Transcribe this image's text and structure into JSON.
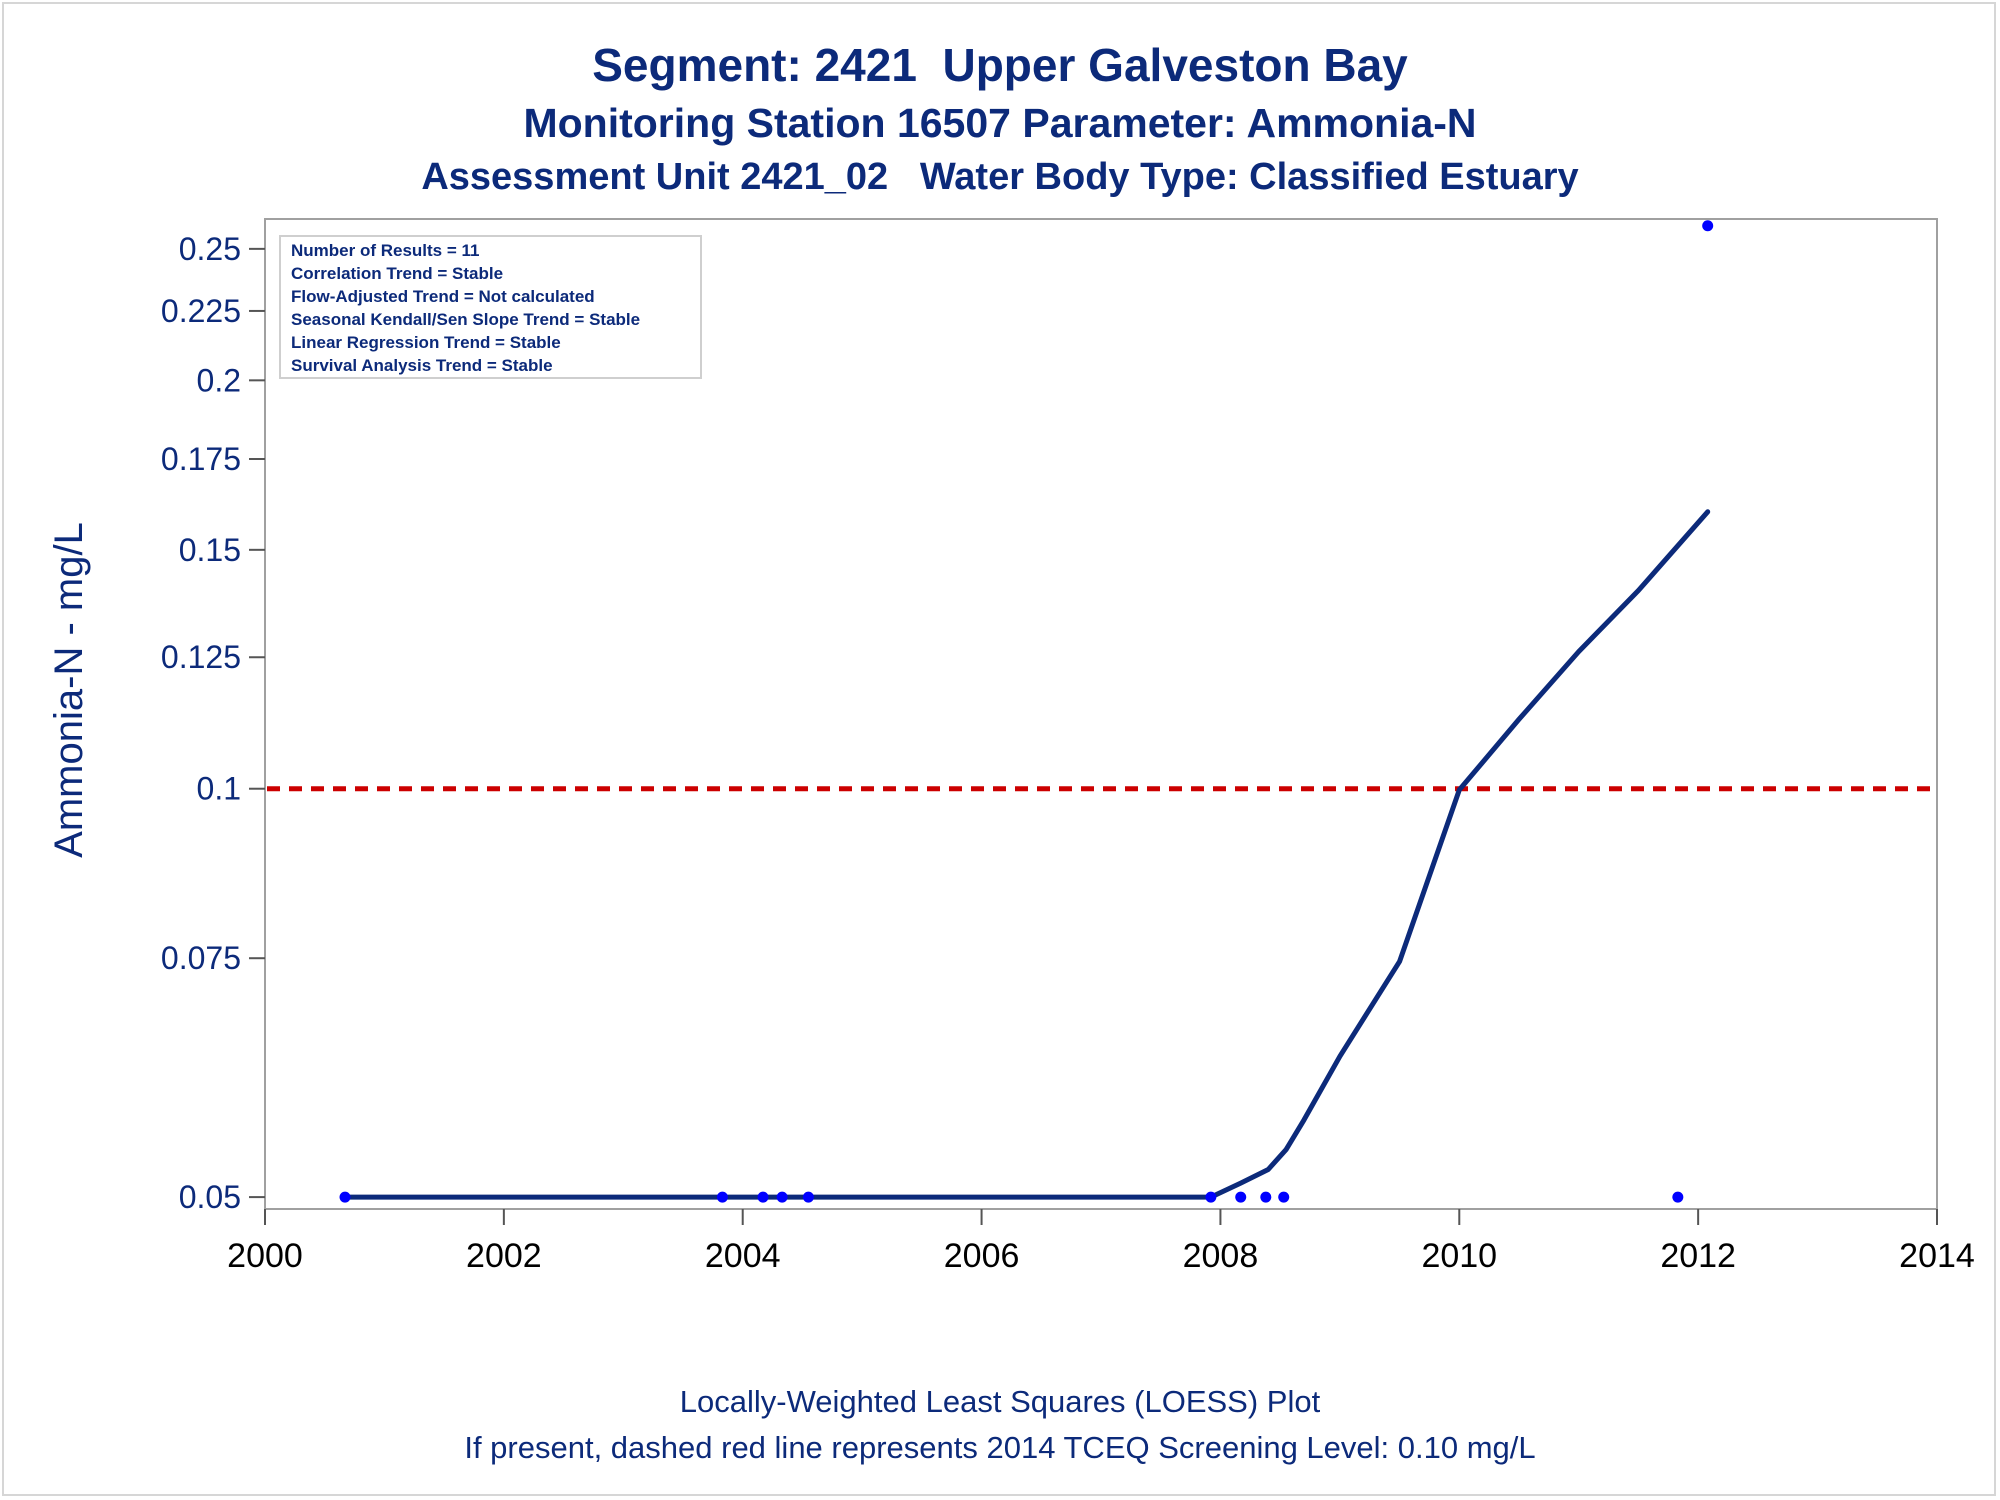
{
  "titles": {
    "line1": "Segment: 2421  Upper Galveston Bay",
    "line2": "Monitoring Station 16507 Parameter: Ammonia-N",
    "line3": "Assessment Unit 2421_02   Water Body Type: Classified Estuary"
  },
  "footnotes": {
    "line1": "Locally-Weighted Least Squares (LOESS) Plot",
    "line2": "If present, dashed red line represents 2014 TCEQ Screening Level: 0.10 mg/L"
  },
  "stats_box": [
    "Number of Results = 11",
    "Correlation Trend = Stable",
    "Flow-Adjusted Trend = Not calculated",
    "Seasonal Kendall/Sen Slope Trend = Stable",
    "Linear Regression Trend = Stable",
    "Survival Analysis Trend = Stable"
  ],
  "colors": {
    "text": "#0c2a7a",
    "loess_line": "#0c2a7a",
    "points": "#0000ff",
    "screening_line": "#cc0000",
    "frame": "#a0a0a0"
  },
  "chart_data": {
    "type": "scatter",
    "ylabel": "Ammonia-N - mg/L",
    "xlabel": "",
    "y_scale": "log",
    "xlim": [
      2000,
      2014
    ],
    "ylim": [
      0.049,
      0.263
    ],
    "x_ticks": [
      2000,
      2002,
      2004,
      2006,
      2008,
      2010,
      2012,
      2014
    ],
    "y_ticks": [
      0.05,
      0.075,
      0.1,
      0.125,
      0.15,
      0.175,
      0.2,
      0.225,
      0.25
    ],
    "y_tick_labels": [
      "0.05",
      "0.075",
      "0.1",
      "0.125",
      "0.15",
      "0.175",
      "0.2",
      "0.225",
      "0.25"
    ],
    "series": [
      {
        "kind": "points",
        "x": [
          2000.67,
          2003.83,
          2004.17,
          2004.33,
          2004.55,
          2007.92,
          2008.17,
          2008.38,
          2008.53,
          2011.83,
          2012.08
        ],
        "y": [
          0.05,
          0.05,
          0.05,
          0.05,
          0.05,
          0.05,
          0.05,
          0.05,
          0.05,
          0.05,
          0.26
        ]
      },
      {
        "kind": "loess",
        "x": [
          2000.67,
          2007.92,
          2008.17,
          2008.4,
          2008.55,
          2008.7,
          2009.0,
          2009.5,
          2010.0,
          2010.5,
          2011.0,
          2011.5,
          2012.08
        ],
        "y": [
          0.05,
          0.05,
          0.0512,
          0.0524,
          0.0542,
          0.057,
          0.0635,
          0.0746,
          0.0998,
          0.1125,
          0.1262,
          0.14,
          0.16
        ]
      }
    ],
    "reference_lines": [
      {
        "kind": "horizontal",
        "y": 0.1,
        "style": "dashed",
        "description": "2014 TCEQ Screening Level: 0.10 mg/L"
      }
    ],
    "grid": false,
    "legend": "none"
  }
}
